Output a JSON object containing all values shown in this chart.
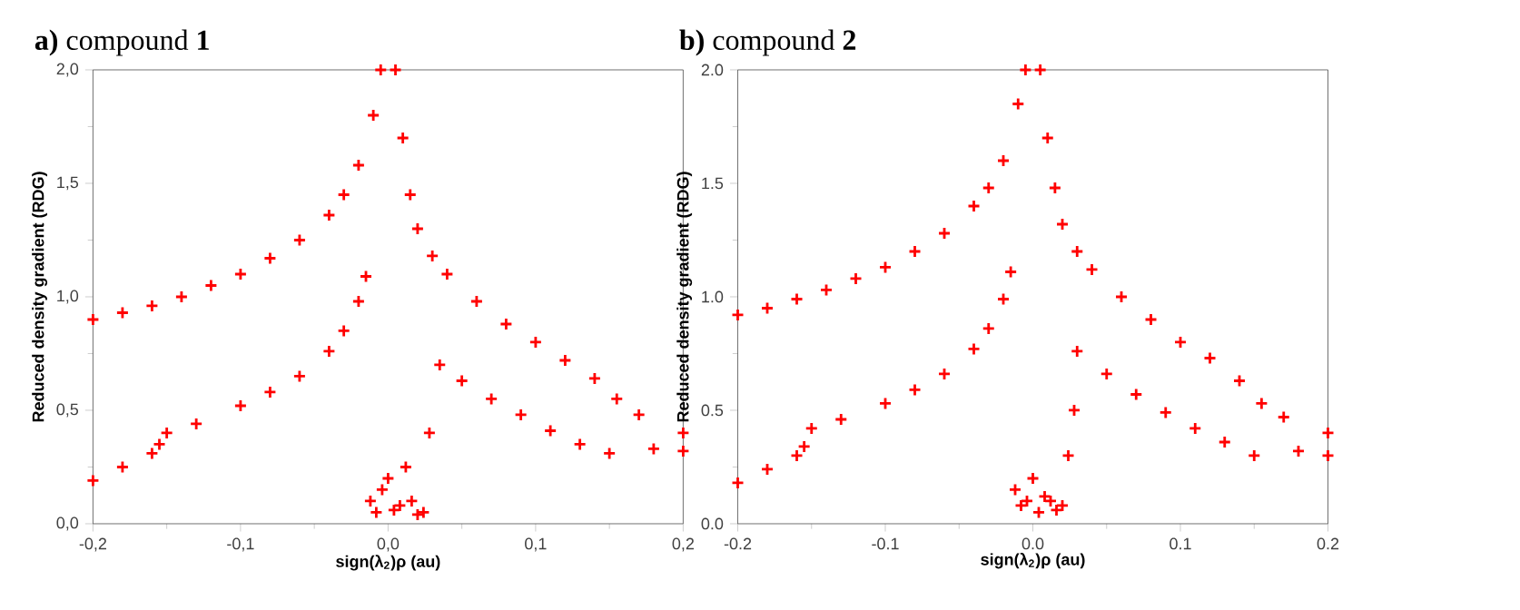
{
  "chart_data": [
    {
      "type": "scatter",
      "title": "**a)** compound **1**",
      "xlabel": "**sign(λ$_{2}$)ρ (au)**",
      "ylabel": "**Reduced density gradient (RDG)**",
      "xlim": [
        -0.2,
        0.2
      ],
      "ylim": [
        0,
        2
      ],
      "xticks": [
        {
          "value": -0.2,
          "label": "-0,2"
        },
        {
          "value": -0.1,
          "label": "-0,1"
        },
        {
          "value": 0,
          "label": "0,0"
        },
        {
          "value": 0.1,
          "label": "0,1"
        },
        {
          "value": 0.2,
          "label": "0,2"
        }
      ],
      "yticks": [
        {
          "value": 0,
          "label": "0,0"
        },
        {
          "value": 0.5,
          "label": "0,5"
        },
        {
          "value": 1,
          "label": "1,0"
        },
        {
          "value": 1.5,
          "label": "1,5"
        },
        {
          "value": 2,
          "label": "2,0"
        }
      ],
      "grid": false,
      "marker": "cross",
      "series": [
        {
          "color": "#ff0000",
          "x": [
            -0.2,
            -0.18,
            -0.16,
            -0.14,
            -0.12,
            -0.1,
            -0.08,
            -0.06,
            -0.04,
            -0.03,
            -0.02,
            -0.01,
            -0.005,
            -0.2,
            -0.18,
            -0.16,
            -0.155,
            -0.15,
            -0.13,
            -0.1,
            -0.08,
            -0.06,
            -0.04,
            -0.03,
            -0.02,
            -0.015,
            -0.012,
            -0.008,
            -0.004,
            0.0,
            0.004,
            0.008,
            0.012,
            0.016,
            0.02,
            0.024,
            0.028,
            0.005,
            0.01,
            0.015,
            0.02,
            0.03,
            0.04,
            0.06,
            0.08,
            0.1,
            0.12,
            0.14,
            0.155,
            0.17,
            0.2,
            0.035,
            0.05,
            0.07,
            0.09,
            0.11,
            0.13,
            0.15,
            0.18,
            0.2
          ],
          "values": [
            0.9,
            0.93,
            0.96,
            1.0,
            1.05,
            1.1,
            1.17,
            1.25,
            1.36,
            1.45,
            1.58,
            1.8,
            2.0,
            0.19,
            0.25,
            0.31,
            0.35,
            0.4,
            0.44,
            0.52,
            0.58,
            0.65,
            0.76,
            0.85,
            0.98,
            1.09,
            0.1,
            0.05,
            0.15,
            0.2,
            0.06,
            0.08,
            0.25,
            0.1,
            0.04,
            0.05,
            0.4,
            2.0,
            1.7,
            1.45,
            1.3,
            1.18,
            1.1,
            0.98,
            0.88,
            0.8,
            0.72,
            0.64,
            0.55,
            0.48,
            0.4,
            0.7,
            0.63,
            0.55,
            0.48,
            0.41,
            0.35,
            0.31,
            0.33,
            0.32
          ]
        }
      ]
    },
    {
      "type": "scatter",
      "title": "**b)** compound **2**",
      "xlabel": "**sign(λ$_{2}$)ρ (au)**",
      "ylabel": "**Reduced density gradient (RDG)**",
      "xlim": [
        -0.2,
        0.2
      ],
      "ylim": [
        0,
        2
      ],
      "xticks": [
        {
          "value": -0.2,
          "label": "-0.2"
        },
        {
          "value": -0.1,
          "label": "-0.1"
        },
        {
          "value": 0,
          "label": "0.0"
        },
        {
          "value": 0.1,
          "label": "0.1"
        },
        {
          "value": 0.2,
          "label": "0.2"
        }
      ],
      "yticks": [
        {
          "value": 0,
          "label": "0.0"
        },
        {
          "value": 0.5,
          "label": "0.5"
        },
        {
          "value": 1,
          "label": "1.0"
        },
        {
          "value": 1.5,
          "label": "1.5"
        },
        {
          "value": 2,
          "label": "2.0"
        }
      ],
      "grid": false,
      "marker": "cross",
      "series": [
        {
          "color": "#ff0000",
          "x": [
            -0.2,
            -0.18,
            -0.16,
            -0.14,
            -0.12,
            -0.1,
            -0.08,
            -0.06,
            -0.04,
            -0.03,
            -0.02,
            -0.01,
            -0.005,
            -0.2,
            -0.18,
            -0.16,
            -0.155,
            -0.15,
            -0.13,
            -0.1,
            -0.08,
            -0.06,
            -0.04,
            -0.03,
            -0.02,
            -0.015,
            -0.012,
            -0.008,
            -0.004,
            0.0,
            0.004,
            0.008,
            0.012,
            0.016,
            0.02,
            0.024,
            0.028,
            0.005,
            0.01,
            0.015,
            0.02,
            0.03,
            0.04,
            0.06,
            0.08,
            0.1,
            0.12,
            0.14,
            0.155,
            0.17,
            0.2,
            0.03,
            0.05,
            0.07,
            0.09,
            0.11,
            0.13,
            0.15,
            0.18,
            0.2
          ],
          "values": [
            0.92,
            0.95,
            0.99,
            1.03,
            1.08,
            1.13,
            1.2,
            1.28,
            1.4,
            1.48,
            1.6,
            1.85,
            2.0,
            0.18,
            0.24,
            0.3,
            0.34,
            0.42,
            0.46,
            0.53,
            0.59,
            0.66,
            0.77,
            0.86,
            0.99,
            1.11,
            0.15,
            0.08,
            0.1,
            0.2,
            0.05,
            0.12,
            0.1,
            0.06,
            0.08,
            0.3,
            0.5,
            2.0,
            1.7,
            1.48,
            1.32,
            1.2,
            1.12,
            1.0,
            0.9,
            0.8,
            0.73,
            0.63,
            0.53,
            0.47,
            0.4,
            0.76,
            0.66,
            0.57,
            0.49,
            0.42,
            0.36,
            0.3,
            0.32,
            0.3
          ]
        }
      ]
    }
  ]
}
